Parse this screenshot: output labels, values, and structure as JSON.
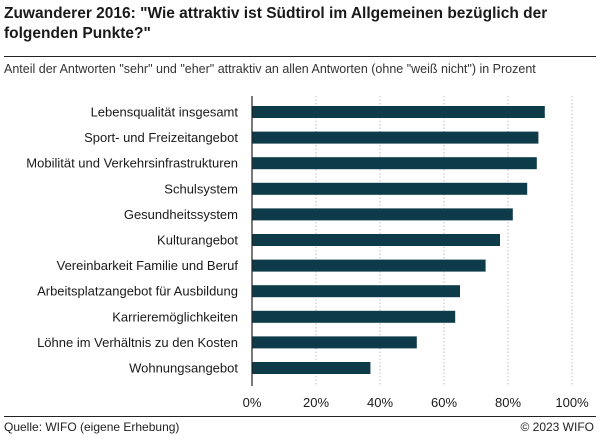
{
  "header": {
    "title": "Zuwanderer 2016: \"Wie attraktiv ist Südtirol im Allgemeinen bezüglich der folgenden Punkte?\"",
    "subtitle": "Anteil der Antworten \"sehr\" und \"eher\" attraktiv an allen Antworten (ohne \"weiß nicht\") in Prozent"
  },
  "footer": {
    "source": "Quelle: WIFO (eigene Erhebung)",
    "copyright": "© 2023 WIFO"
  },
  "chart_data": {
    "type": "bar",
    "orientation": "horizontal",
    "title": "Zuwanderer 2016: \"Wie attraktiv ist Südtirol im Allgemeinen bezüglich der folgenden Punkte?\"",
    "subtitle": "Anteil der Antworten \"sehr\" und \"eher\" attraktiv an allen Antworten (ohne \"weiß nicht\") in Prozent",
    "xlabel": "",
    "ylabel": "",
    "categories": [
      "Lebensqualität insgesamt",
      "Sport- und Freizeitangebot",
      "Mobilität und Verkehrsinfrastrukturen",
      "Schulsystem",
      "Gesundheitssystem",
      "Kulturangebot",
      "Vereinbarkeit Familie und Beruf",
      "Arbeitsplatzangebot für Ausbildung",
      "Karrieremöglichkeiten",
      "Löhne im Verhältnis zu den Kosten",
      "Wohnungsangebot"
    ],
    "values": [
      91.5,
      89.5,
      89,
      86,
      81.5,
      77.5,
      73,
      65,
      63.5,
      51.5,
      37
    ],
    "xlim": [
      0,
      100
    ],
    "ticks": [
      0,
      20,
      40,
      60,
      80,
      100
    ],
    "tick_labels": [
      "0%",
      "20%",
      "40%",
      "60%",
      "80%",
      "100%"
    ],
    "grid": true,
    "bar_color": "#0e3b4a",
    "grid_color": "#bfbfbf"
  }
}
